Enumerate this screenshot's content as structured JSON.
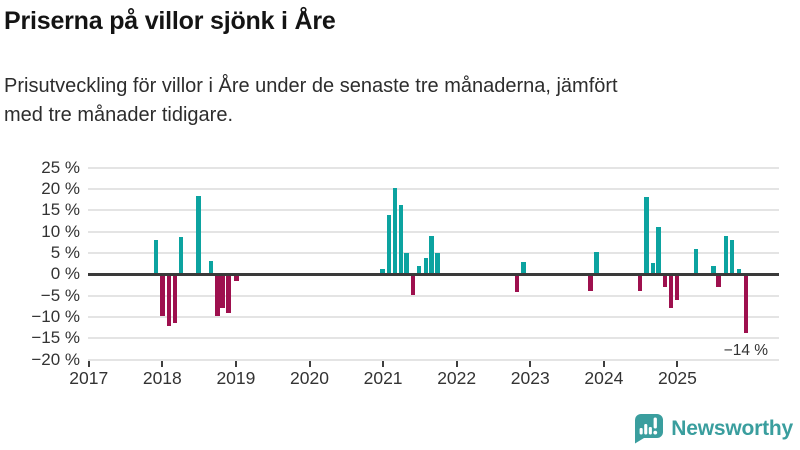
{
  "header": {
    "title": "Priserna på villor sjönk i Åre",
    "subtitle_lines": [
      "Prisutveckling för villor i Åre under de senaste tre månaderna, jämfört",
      "med tre månader tidigare."
    ]
  },
  "chart_data": {
    "type": "bar",
    "title": "Priserna på villor sjönk i Åre",
    "subtitle": "Prisutveckling för villor i Åre under de senaste tre månaderna, jämfört med tre månader tidigare.",
    "xlabel": "",
    "ylabel": "",
    "unit": "%",
    "grid": true,
    "legend": "none",
    "ylim": [
      -20,
      25
    ],
    "xlim": [
      2016.99,
      2026.38
    ],
    "y_ticks": [
      {
        "v": 25,
        "label": "25 %"
      },
      {
        "v": 20,
        "label": "20 %"
      },
      {
        "v": 15,
        "label": "15 %"
      },
      {
        "v": 10,
        "label": "10 %"
      },
      {
        "v": 5,
        "label": "5 %"
      },
      {
        "v": 0,
        "label": "0 %"
      },
      {
        "v": -5,
        "label": "−5 %"
      },
      {
        "v": -10,
        "label": "−10 %"
      },
      {
        "v": -15,
        "label": "−15 %"
      },
      {
        "v": -20,
        "label": "−20 %"
      }
    ],
    "x_ticks": [
      {
        "v": 2017,
        "label": "2017"
      },
      {
        "v": 2018,
        "label": "2018"
      },
      {
        "v": 2019,
        "label": "2019"
      },
      {
        "v": 2020,
        "label": "2020"
      },
      {
        "v": 2021,
        "label": "2021"
      },
      {
        "v": 2022,
        "label": "2022"
      },
      {
        "v": 2023,
        "label": "2023"
      },
      {
        "v": 2024,
        "label": "2024"
      },
      {
        "v": 2025,
        "label": "2025"
      }
    ],
    "colors": {
      "positive": "#0ca3a0",
      "negative": "#9e104e",
      "zero_line": "#3a3a3a",
      "gridline": "#e4e4e4",
      "tick_label": "#333333"
    },
    "bars": [
      {
        "x": 2017.91,
        "v": 7.9
      },
      {
        "x": 2018.0,
        "v": -9.8
      },
      {
        "x": 2018.09,
        "v": -12.1
      },
      {
        "x": 2018.17,
        "v": -11.5
      },
      {
        "x": 2018.25,
        "v": 8.7
      },
      {
        "x": 2018.49,
        "v": 18.3
      },
      {
        "x": 2018.66,
        "v": 3.1
      },
      {
        "x": 2018.75,
        "v": -9.8
      },
      {
        "x": 2018.82,
        "v": -8.0
      },
      {
        "x": 2018.9,
        "v": -9.0
      },
      {
        "x": 2019.01,
        "v": -1.5
      },
      {
        "x": 2020.99,
        "v": 1.2
      },
      {
        "x": 2021.08,
        "v": 13.8
      },
      {
        "x": 2021.16,
        "v": 20.1
      },
      {
        "x": 2021.24,
        "v": 16.1
      },
      {
        "x": 2021.32,
        "v": 5.0
      },
      {
        "x": 2021.41,
        "v": -4.8
      },
      {
        "x": 2021.49,
        "v": 2.0
      },
      {
        "x": 2021.58,
        "v": 3.7
      },
      {
        "x": 2021.66,
        "v": 9.0
      },
      {
        "x": 2021.74,
        "v": 5.0
      },
      {
        "x": 2022.82,
        "v": -4.1
      },
      {
        "x": 2022.91,
        "v": 2.9
      },
      {
        "x": 2023.82,
        "v": -4.0
      },
      {
        "x": 2023.9,
        "v": 5.1
      },
      {
        "x": 2024.49,
        "v": -4.0
      },
      {
        "x": 2024.58,
        "v": 18.1
      },
      {
        "x": 2024.67,
        "v": 2.7
      },
      {
        "x": 2024.74,
        "v": 11.1
      },
      {
        "x": 2024.83,
        "v": -3.0
      },
      {
        "x": 2024.91,
        "v": -7.9
      },
      {
        "x": 2024.99,
        "v": -6.1
      },
      {
        "x": 2025.25,
        "v": 5.9
      },
      {
        "x": 2025.49,
        "v": 2.0
      },
      {
        "x": 2025.56,
        "v": -3.0
      },
      {
        "x": 2025.66,
        "v": 8.9
      },
      {
        "x": 2025.74,
        "v": 8.1
      },
      {
        "x": 2025.84,
        "v": 1.2
      },
      {
        "x": 2025.93,
        "v": -13.9
      }
    ],
    "annotation": {
      "text": "−14 %",
      "x": 2025.93,
      "value": -13.9
    }
  },
  "footer": {
    "brand": "Newsworthy",
    "brand_color": "#3a9e9e"
  }
}
